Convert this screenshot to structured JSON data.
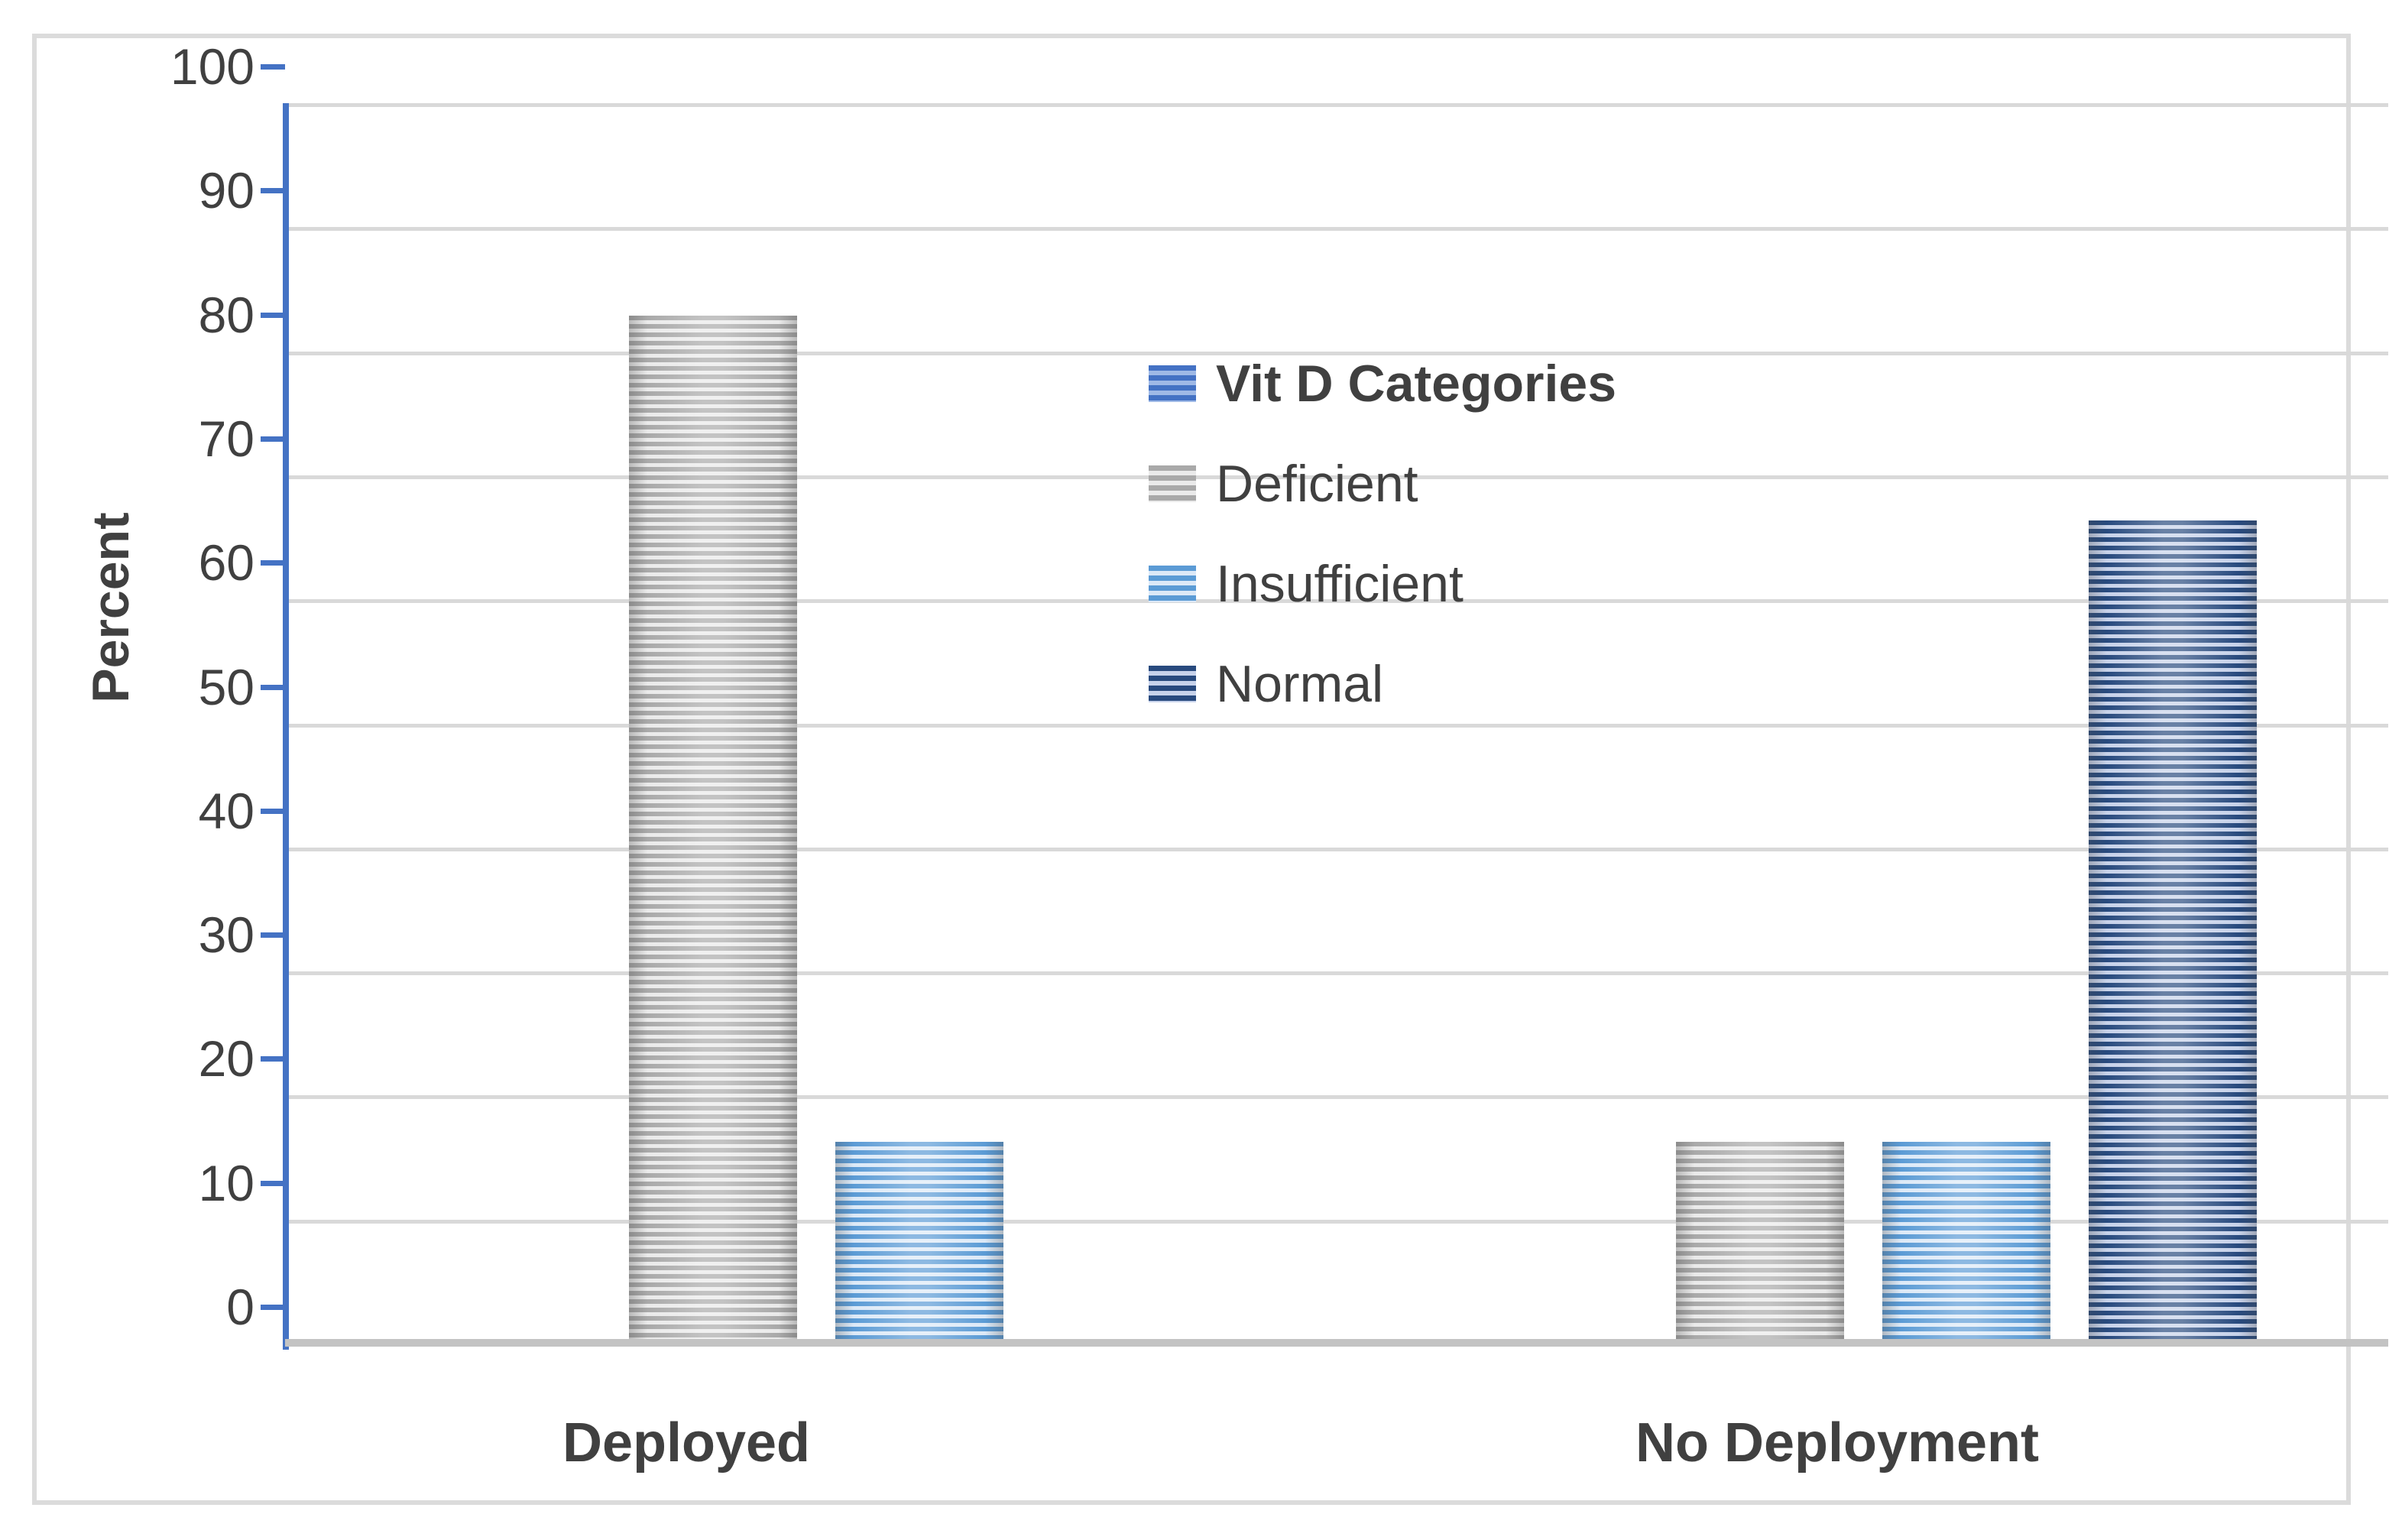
{
  "chart_data": {
    "type": "bar",
    "title": "",
    "xlabel": "",
    "ylabel": "Percent",
    "categories": [
      "Deployed",
      "No Deployment"
    ],
    "series": [
      {
        "name": "Deficient",
        "values": [
          83.0,
          16.4
        ],
        "stripe_color": "#A9A9A9",
        "fill_color": "#EAEAEA"
      },
      {
        "name": "Insufficient",
        "values": [
          16.4,
          16.4
        ],
        "stripe_color": "#5B9BD5",
        "fill_color": "#DCE9F7"
      },
      {
        "name": "Normal",
        "values": [
          0,
          66.5
        ],
        "stripe_color": "#284A7E",
        "fill_color": "#C7D2EA"
      }
    ],
    "legend": {
      "title": "Vit D Categories",
      "title_swatch_stripe_color": "#4472C4",
      "title_swatch_fill_color": "#9FB9E6",
      "position": "inside-upper-middle",
      "entries": [
        "Deficient",
        "Insufficient",
        "Normal"
      ]
    },
    "ylim": [
      0,
      100
    ],
    "y_ticks": [
      100,
      90,
      80,
      70,
      60,
      50,
      40,
      30,
      20,
      10,
      0
    ],
    "grid": true,
    "bar_pattern": "horizontal-stripes"
  },
  "colors": {
    "axis_line": "#4472C4",
    "gridline": "#D9D9D9",
    "baseline": "#C3C3C3",
    "text": "#404040",
    "frame_border": "#DBDBDB",
    "background": "#FFFFFF"
  }
}
